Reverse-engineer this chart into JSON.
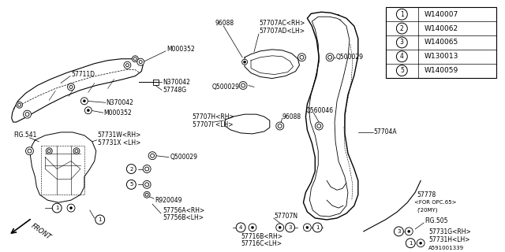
{
  "bg_color": "#ffffff",
  "line_color": "#000000",
  "text_color": "#000000",
  "legend_items": [
    {
      "num": "1",
      "code": "W140007"
    },
    {
      "num": "2",
      "code": "W140062"
    },
    {
      "num": "3",
      "code": "W140065"
    },
    {
      "num": "4",
      "code": "W130013"
    },
    {
      "num": "5",
      "code": "W140059"
    }
  ]
}
